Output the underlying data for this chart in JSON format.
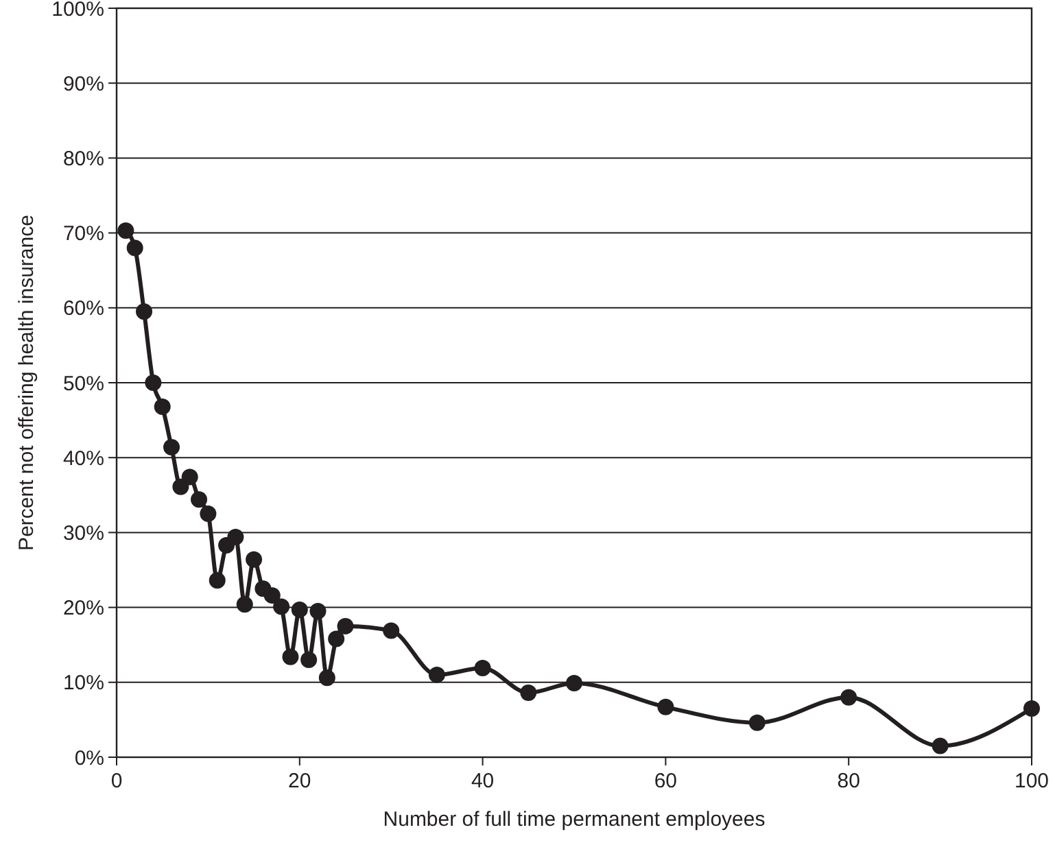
{
  "chart_data": {
    "type": "line",
    "xlabel": "Number of full time permanent employees",
    "ylabel": "Percent not offering health insurance",
    "x": [
      1,
      2,
      3,
      4,
      5,
      6,
      7,
      8,
      9,
      10,
      11,
      12,
      13,
      14,
      15,
      16,
      17,
      18,
      19,
      20,
      21,
      22,
      23,
      24,
      25,
      30,
      35,
      40,
      45,
      50,
      60,
      70,
      80,
      90,
      100
    ],
    "series": [
      {
        "color": "#231f20",
        "values": [
          70.3,
          68.0,
          59.5,
          50.0,
          46.8,
          41.4,
          36.1,
          37.4,
          34.4,
          32.5,
          23.6,
          28.3,
          29.4,
          20.4,
          26.4,
          22.5,
          21.6,
          20.1,
          13.4,
          19.7,
          13.0,
          19.5,
          10.6,
          15.8,
          17.5,
          16.9,
          11.0,
          11.9,
          8.6,
          9.9,
          6.7,
          4.6,
          8.0,
          1.5,
          6.5
        ]
      }
    ],
    "xlim": [
      0,
      100
    ],
    "xticks": [
      0,
      20,
      40,
      60,
      80,
      100
    ],
    "ylim": [
      0,
      100
    ],
    "yticks": [
      {
        "value": 0,
        "label": "0%"
      },
      {
        "value": 10,
        "label": "10%"
      },
      {
        "value": 20,
        "label": "20%"
      },
      {
        "value": 30,
        "label": "30%"
      },
      {
        "value": 40,
        "label": "40%"
      },
      {
        "value": 50,
        "label": "50%"
      },
      {
        "value": 60,
        "label": "60%"
      },
      {
        "value": 70,
        "label": "70%"
      },
      {
        "value": 80,
        "label": "80%"
      },
      {
        "value": 90,
        "label": "90%"
      },
      {
        "value": 100,
        "label": "100%"
      }
    ],
    "grid": "y",
    "marker": "circle",
    "line_style": "solid"
  }
}
